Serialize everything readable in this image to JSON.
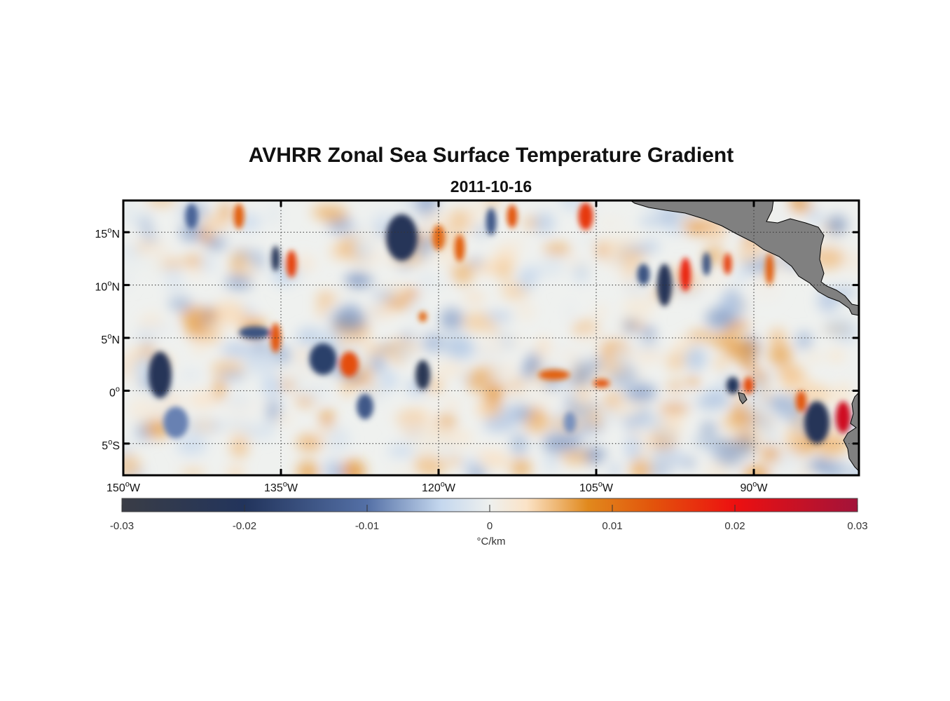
{
  "title": "AVHRR Zonal Sea Surface Temperature Gradient",
  "subtitle": "2011-10-16",
  "map": {
    "lon_range": [
      -150,
      -80
    ],
    "lat_range": [
      -8,
      18
    ],
    "lon_ticks": [
      {
        "value": -150,
        "label_num": "150",
        "label_hem": "W"
      },
      {
        "value": -135,
        "label_num": "135",
        "label_hem": "W"
      },
      {
        "value": -120,
        "label_num": "120",
        "label_hem": "W"
      },
      {
        "value": -105,
        "label_num": "105",
        "label_hem": "W"
      },
      {
        "value": -90,
        "label_num": "90",
        "label_hem": "W"
      }
    ],
    "lat_ticks": [
      {
        "value": 15,
        "label_num": "15",
        "label_hem": "N"
      },
      {
        "value": 10,
        "label_num": "10",
        "label_hem": "N"
      },
      {
        "value": 5,
        "label_num": "5",
        "label_hem": "N"
      },
      {
        "value": 0,
        "label_num": "0",
        "label_hem": ""
      },
      {
        "value": -5,
        "label_num": "5",
        "label_hem": "S"
      }
    ],
    "grid": "dotted",
    "land_color": "#808080",
    "blobs": [
      {
        "lon": -146.5,
        "lat": 1.5,
        "sx": 1.1,
        "sy": 2.2,
        "v": -0.022
      },
      {
        "lon": -143.5,
        "lat": 16.5,
        "sx": 0.6,
        "sy": 1.2,
        "v": -0.012
      },
      {
        "lon": -139,
        "lat": 16.5,
        "sx": 0.5,
        "sy": 1.2,
        "v": 0.012
      },
      {
        "lon": -135.5,
        "lat": 12.5,
        "sx": 0.4,
        "sy": 1.2,
        "v": -0.022
      },
      {
        "lon": -134,
        "lat": 12,
        "sx": 0.5,
        "sy": 1.3,
        "v": 0.015
      },
      {
        "lon": -137.5,
        "lat": 5.5,
        "sx": 1.5,
        "sy": 0.6,
        "v": -0.015
      },
      {
        "lon": -135.5,
        "lat": 5,
        "sx": 0.5,
        "sy": 1.4,
        "v": 0.013
      },
      {
        "lon": -145,
        "lat": -3,
        "sx": 1.2,
        "sy": 1.5,
        "v": -0.009
      },
      {
        "lon": -131,
        "lat": 3,
        "sx": 1.3,
        "sy": 1.5,
        "v": -0.018
      },
      {
        "lon": -128.5,
        "lat": 2.5,
        "sx": 0.9,
        "sy": 1.2,
        "v": 0.014
      },
      {
        "lon": -127,
        "lat": -1.5,
        "sx": 0.8,
        "sy": 1.2,
        "v": -0.014
      },
      {
        "lon": -123.5,
        "lat": 14.5,
        "sx": 1.5,
        "sy": 2.2,
        "v": -0.022
      },
      {
        "lon": -121.5,
        "lat": 1.5,
        "sx": 0.7,
        "sy": 1.4,
        "v": -0.023
      },
      {
        "lon": -120,
        "lat": 14.5,
        "sx": 0.6,
        "sy": 1.2,
        "v": 0.011
      },
      {
        "lon": -118,
        "lat": 13.5,
        "sx": 0.5,
        "sy": 1.3,
        "v": 0.012
      },
      {
        "lon": -115,
        "lat": 16,
        "sx": 0.5,
        "sy": 1.3,
        "v": -0.014
      },
      {
        "lon": -113,
        "lat": 16.5,
        "sx": 0.5,
        "sy": 1.1,
        "v": 0.013
      },
      {
        "lon": -109,
        "lat": 1.5,
        "sx": 1.5,
        "sy": 0.5,
        "v": 0.012
      },
      {
        "lon": -106,
        "lat": 16.5,
        "sx": 0.7,
        "sy": 1.3,
        "v": 0.016
      },
      {
        "lon": -104.5,
        "lat": 0.7,
        "sx": 0.8,
        "sy": 0.4,
        "v": 0.013
      },
      {
        "lon": -100.5,
        "lat": 11,
        "sx": 0.6,
        "sy": 1.0,
        "v": -0.015
      },
      {
        "lon": -98.5,
        "lat": 10,
        "sx": 0.7,
        "sy": 2.0,
        "v": -0.022
      },
      {
        "lon": -96.5,
        "lat": 11,
        "sx": 0.5,
        "sy": 1.6,
        "v": 0.018
      },
      {
        "lon": -94.5,
        "lat": 12,
        "sx": 0.4,
        "sy": 1.1,
        "v": -0.015
      },
      {
        "lon": -92.5,
        "lat": 12,
        "sx": 0.4,
        "sy": 1.0,
        "v": 0.015
      },
      {
        "lon": -88.5,
        "lat": 11.5,
        "sx": 0.4,
        "sy": 1.5,
        "v": 0.012
      },
      {
        "lon": -92,
        "lat": 0.5,
        "sx": 0.6,
        "sy": 0.8,
        "v": -0.02
      },
      {
        "lon": -90.5,
        "lat": 0.5,
        "sx": 0.5,
        "sy": 0.8,
        "v": 0.014
      },
      {
        "lon": -84,
        "lat": -3,
        "sx": 1.2,
        "sy": 2.0,
        "v": -0.022
      },
      {
        "lon": -81.5,
        "lat": -2.5,
        "sx": 0.7,
        "sy": 1.5,
        "v": 0.024
      },
      {
        "lon": -85.5,
        "lat": -1,
        "sx": 0.5,
        "sy": 1.0,
        "v": 0.013
      },
      {
        "lon": -107.5,
        "lat": -3,
        "sx": 0.6,
        "sy": 1.0,
        "v": -0.008
      },
      {
        "lon": -121.5,
        "lat": 7,
        "sx": 0.4,
        "sy": 0.5,
        "v": 0.011
      }
    ]
  },
  "colorbar": {
    "range": [
      -0.03,
      0.03
    ],
    "tick_labels": [
      "-0.03",
      "-0.02",
      "-0.01",
      "0",
      "0.01",
      "0.02",
      "0.03"
    ],
    "label": "°C/km",
    "stops": [
      {
        "v": -0.03,
        "color": "#3a3d46"
      },
      {
        "v": -0.02,
        "color": "#22345c"
      },
      {
        "v": -0.01,
        "color": "#5470a6"
      },
      {
        "v": -0.004,
        "color": "#c4d7ee"
      },
      {
        "v": 0.0,
        "color": "#eef0ee"
      },
      {
        "v": 0.003,
        "color": "#fbe3c7"
      },
      {
        "v": 0.008,
        "color": "#e1891d"
      },
      {
        "v": 0.013,
        "color": "#e2570c"
      },
      {
        "v": 0.02,
        "color": "#ed1010"
      },
      {
        "v": 0.03,
        "color": "#a2133a"
      }
    ]
  }
}
